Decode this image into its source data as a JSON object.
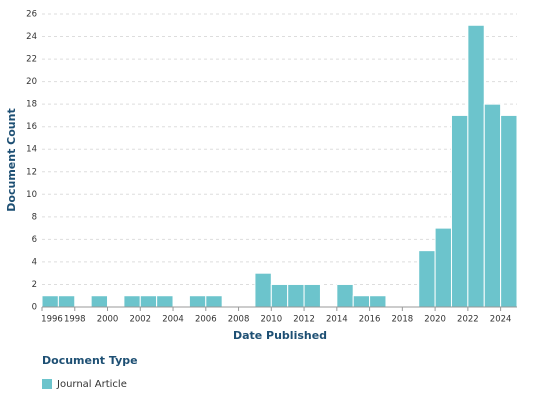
{
  "chart_data": {
    "type": "bar",
    "x_label": "Date Published",
    "y_label": "Document Count",
    "legend_title": "Document Type",
    "x": [
      1996,
      1997,
      1998,
      1999,
      2000,
      2001,
      2002,
      2003,
      2004,
      2005,
      2006,
      2007,
      2008,
      2009,
      2010,
      2011,
      2012,
      2013,
      2014,
      2015,
      2016,
      2017,
      2018,
      2019,
      2020,
      2021,
      2022,
      2023,
      2024
    ],
    "series": [
      {
        "name": "Journal Article",
        "color": "#6cc4cc",
        "values": [
          1,
          1,
          0,
          1,
          0,
          1,
          1,
          1,
          0,
          1,
          1,
          0,
          0,
          3,
          2,
          2,
          2,
          0,
          2,
          1,
          1,
          0,
          0,
          5,
          7,
          17,
          25,
          18,
          17
        ]
      }
    ],
    "xlim": [
      1996,
      2025
    ],
    "xticks": [
      1996,
      1998,
      2000,
      2002,
      2004,
      2006,
      2008,
      2010,
      2012,
      2014,
      2016,
      2018,
      2020,
      2022,
      2024
    ],
    "ylim": [
      0,
      26
    ],
    "yticks": [
      0,
      2,
      4,
      6,
      8,
      10,
      12,
      14,
      16,
      18,
      20,
      22,
      24,
      26
    ],
    "grid": true
  }
}
